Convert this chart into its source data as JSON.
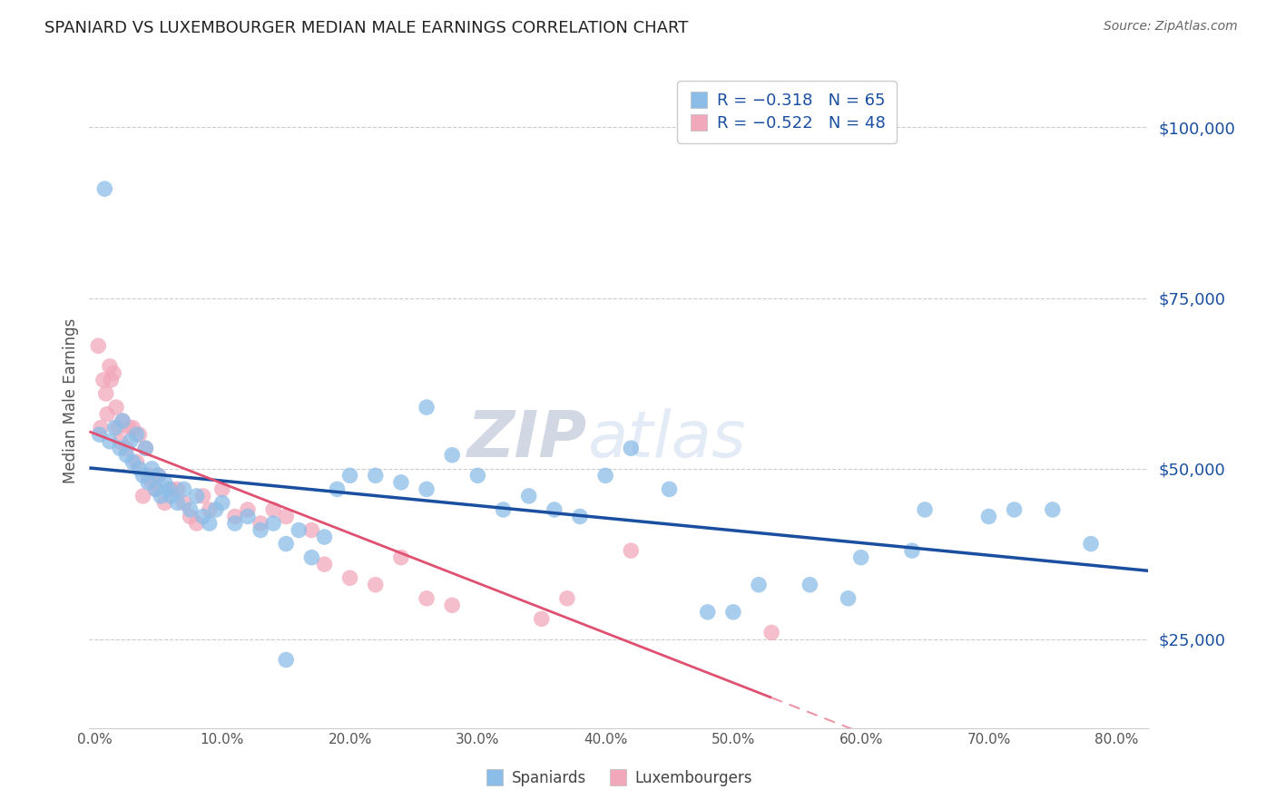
{
  "title": "SPANIARD VS LUXEMBOURGER MEDIAN MALE EARNINGS CORRELATION CHART",
  "source": "Source: ZipAtlas.com",
  "ylabel": "Median Male Earnings",
  "ytick_values": [
    25000,
    50000,
    75000,
    100000
  ],
  "ymin": 12000,
  "ymax": 108000,
  "xmin": -0.004,
  "xmax": 0.825,
  "legend_blue_r": "R = −0.318",
  "legend_blue_n": "N = 65",
  "legend_pink_r": "R = −0.522",
  "legend_pink_n": "N = 48",
  "blue_color": "#8bbde8",
  "blue_line_color": "#1a4fa0",
  "pink_color": "#f2a8bb",
  "pink_line_color": "#e05070",
  "spaniards_x": [
    0.004,
    0.008,
    0.012,
    0.016,
    0.02,
    0.022,
    0.025,
    0.028,
    0.03,
    0.033,
    0.035,
    0.038,
    0.04,
    0.042,
    0.045,
    0.048,
    0.05,
    0.052,
    0.055,
    0.058,
    0.06,
    0.065,
    0.07,
    0.075,
    0.08,
    0.085,
    0.09,
    0.095,
    0.1,
    0.11,
    0.12,
    0.13,
    0.14,
    0.15,
    0.16,
    0.17,
    0.18,
    0.19,
    0.2,
    0.22,
    0.24,
    0.26,
    0.28,
    0.3,
    0.32,
    0.34,
    0.36,
    0.38,
    0.4,
    0.42,
    0.45,
    0.48,
    0.5,
    0.52,
    0.56,
    0.59,
    0.6,
    0.64,
    0.65,
    0.7,
    0.72,
    0.75,
    0.78,
    0.15,
    0.26
  ],
  "spaniards_y": [
    55000,
    91000,
    54000,
    56000,
    53000,
    57000,
    52000,
    54000,
    51000,
    55000,
    50000,
    49000,
    53000,
    48000,
    50000,
    47000,
    49000,
    46000,
    48000,
    47000,
    46000,
    45000,
    47000,
    44000,
    46000,
    43000,
    42000,
    44000,
    45000,
    42000,
    43000,
    41000,
    42000,
    39000,
    41000,
    37000,
    40000,
    47000,
    49000,
    49000,
    48000,
    47000,
    52000,
    49000,
    44000,
    46000,
    44000,
    43000,
    49000,
    53000,
    47000,
    29000,
    29000,
    33000,
    33000,
    31000,
    37000,
    38000,
    44000,
    43000,
    44000,
    44000,
    39000,
    22000,
    59000
  ],
  "luxembourgers_x": [
    0.003,
    0.005,
    0.007,
    0.009,
    0.01,
    0.012,
    0.013,
    0.015,
    0.017,
    0.018,
    0.02,
    0.022,
    0.025,
    0.027,
    0.03,
    0.033,
    0.035,
    0.038,
    0.04,
    0.042,
    0.045,
    0.048,
    0.05,
    0.055,
    0.06,
    0.065,
    0.07,
    0.075,
    0.08,
    0.085,
    0.09,
    0.1,
    0.11,
    0.12,
    0.13,
    0.14,
    0.15,
    0.17,
    0.18,
    0.2,
    0.22,
    0.24,
    0.26,
    0.28,
    0.35,
    0.37,
    0.42,
    0.53
  ],
  "luxembourgers_y": [
    68000,
    56000,
    63000,
    61000,
    58000,
    65000,
    63000,
    64000,
    59000,
    56000,
    54000,
    57000,
    53000,
    56000,
    56000,
    51000,
    55000,
    46000,
    53000,
    49000,
    48000,
    47000,
    49000,
    45000,
    47000,
    47000,
    45000,
    43000,
    42000,
    46000,
    44000,
    47000,
    43000,
    44000,
    42000,
    44000,
    43000,
    41000,
    36000,
    34000,
    33000,
    37000,
    31000,
    30000,
    28000,
    31000,
    38000,
    26000
  ],
  "xtick_vals": [
    0.0,
    0.1,
    0.2,
    0.3,
    0.4,
    0.5,
    0.6,
    0.7,
    0.8
  ]
}
